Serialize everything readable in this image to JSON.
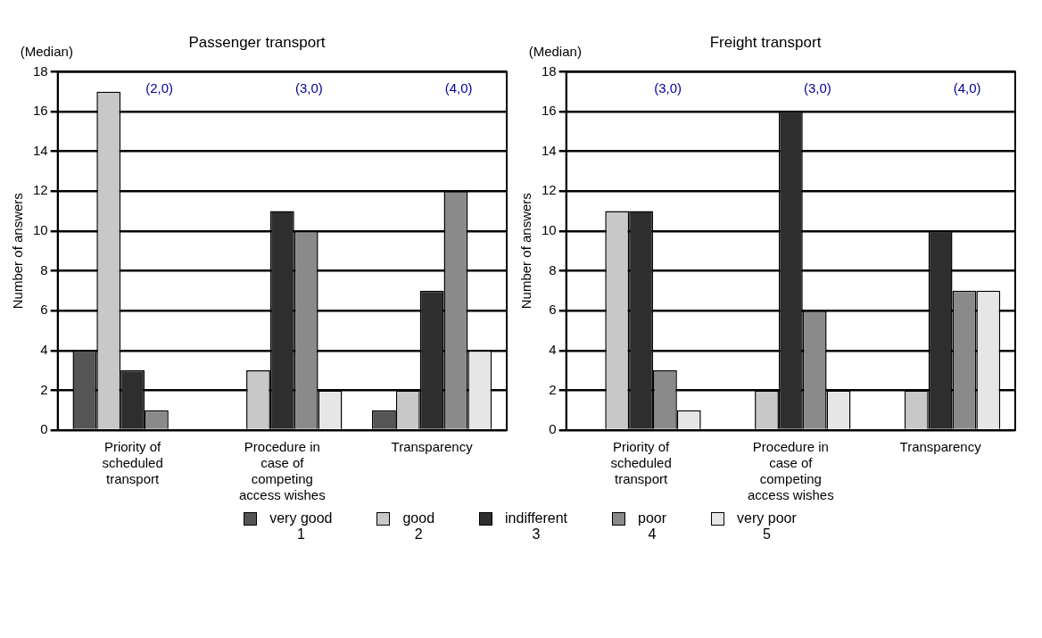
{
  "chart_data": [
    {
      "type": "bar",
      "title": "Passenger transport",
      "ylabel": "Number of answers",
      "categories": [
        "Priority of scheduled transport",
        "Procedure in case of competing access wishes",
        "Transparency"
      ],
      "series": [
        {
          "name": "very good\n1",
          "color": "#555555",
          "values": [
            4,
            0,
            1
          ]
        },
        {
          "name": "good\n2",
          "color": "#c8c8c8",
          "values": [
            17,
            3,
            2
          ]
        },
        {
          "name": "indifferent\n3",
          "color": "#2e2e2e",
          "values": [
            3,
            11,
            7
          ]
        },
        {
          "name": "poor\n4",
          "color": "#8a8a8a",
          "values": [
            1,
            10,
            12
          ]
        },
        {
          "name": "very poor\n5",
          "color": "#e6e6e6",
          "values": [
            0,
            2,
            4
          ]
        }
      ],
      "ylim": [
        0,
        18
      ],
      "yticks": [
        0,
        2,
        4,
        6,
        8,
        10,
        12,
        14,
        16,
        18
      ],
      "grid": "y",
      "legend": "bottom",
      "annotations": [
        "(Median)",
        "(2,0)",
        "(3,0)",
        "(4,0)"
      ]
    },
    {
      "type": "bar",
      "title": "Freight transport",
      "ylabel": "Number of answers",
      "categories": [
        "Priority of scheduled transport",
        "Procedure in case of competing access wishes",
        "Transparency"
      ],
      "series": [
        {
          "color": "#555555",
          "values": [
            0,
            0,
            0
          ]
        },
        {
          "color": "#c8c8c8",
          "values": [
            11,
            2,
            2
          ]
        },
        {
          "color": "#2e2e2e",
          "values": [
            11,
            16,
            10
          ]
        },
        {
          "color": "#8a8a8a",
          "values": [
            3,
            6,
            7
          ]
        },
        {
          "color": "#e6e6e6",
          "values": [
            1,
            2,
            7
          ]
        }
      ],
      "ylim": [
        0,
        18
      ],
      "yticks": [
        0,
        2,
        4,
        6,
        8,
        10,
        12,
        14,
        16,
        18
      ],
      "grid": "y",
      "annotations": [
        "(Median)",
        "(3,0)",
        "(3,0)",
        "(4,0)"
      ]
    }
  ]
}
